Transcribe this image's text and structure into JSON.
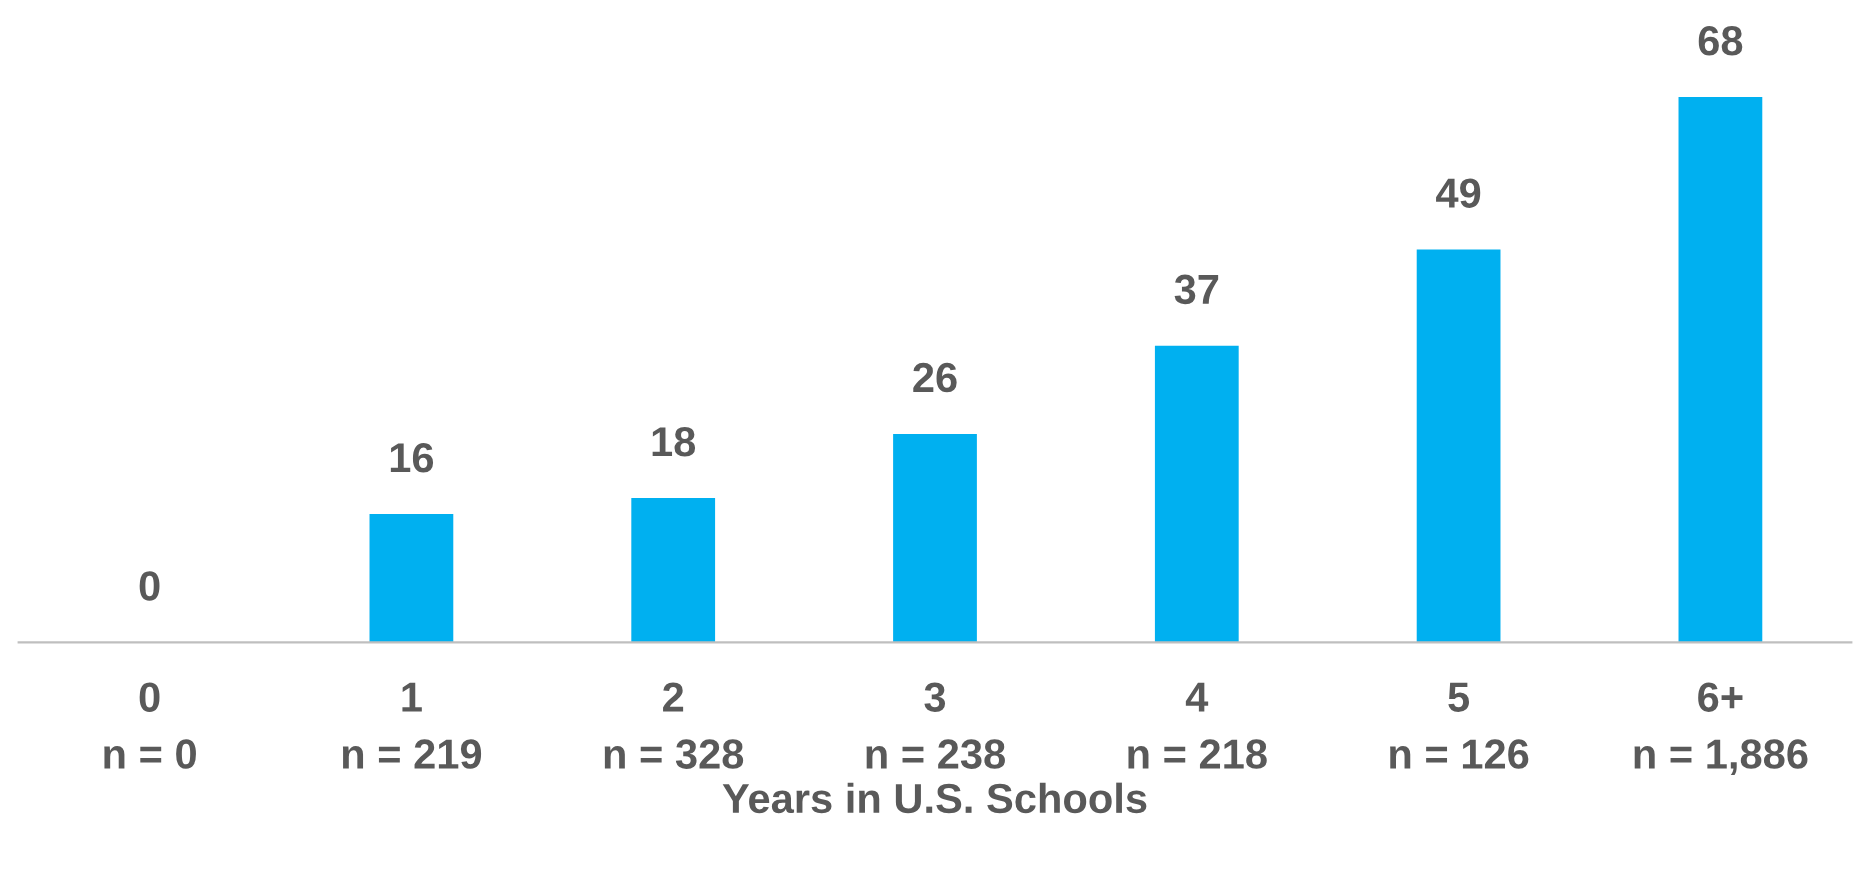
{
  "chart_data": {
    "type": "bar",
    "xlabel": "Years in U.S. Schools",
    "categories": [
      "0\nn = 0",
      "1\nn = 219",
      "2\nn = 328",
      "3\nn = 238",
      "4\nn = 218",
      "5\nn = 126",
      "6+\nn = 1,886"
    ],
    "values": [
      0,
      16,
      18,
      26,
      37,
      49,
      68
    ],
    "color": "#00b0f0",
    "data_labels": true,
    "grid": false,
    "legend": false
  }
}
